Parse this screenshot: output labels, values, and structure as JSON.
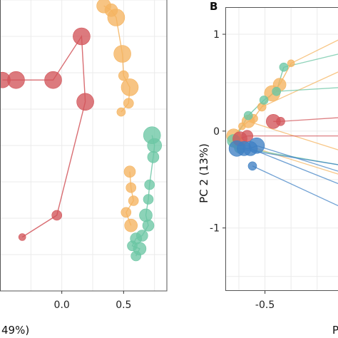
{
  "colors": {
    "red": "#d2555a",
    "orange": "#f5b460",
    "teal": "#6cc6a4",
    "blue": "#3f80c4",
    "grid": "#ebebeb",
    "frame": "#555555"
  },
  "chart_data": [
    {
      "type": "scatter",
      "panel_label": "",
      "xlabel": "",
      "ylabel": "",
      "xlabel_fragment": "49%)",
      "xlim": [
        -0.5,
        0.85
      ],
      "ylim": [
        -1.0,
        1.0
      ],
      "x_ticks": [
        0.0,
        0.5
      ],
      "x_tick_labels": [
        "0.0",
        "0.5"
      ],
      "y_ticks": [],
      "grid": true,
      "series": [
        {
          "color_key": "red",
          "points": [
            {
              "x": -0.48,
              "y": 0.45,
              "r": 11
            },
            {
              "x": -0.37,
              "y": 0.45,
              "r": 12
            },
            {
              "x": -0.07,
              "y": 0.45,
              "r": 12
            },
            {
              "x": 0.16,
              "y": 0.75,
              "r": 12
            },
            {
              "x": 0.19,
              "y": 0.3,
              "r": 12
            },
            {
              "x": -0.04,
              "y": -0.48,
              "r": 7
            },
            {
              "x": -0.32,
              "y": -0.63,
              "r": 5
            }
          ],
          "paths": [
            [
              0,
              1,
              2,
              3,
              4,
              5,
              6
            ]
          ]
        },
        {
          "color_key": "orange",
          "points": [
            {
              "x": 0.34,
              "y": 0.96,
              "r": 10
            },
            {
              "x": 0.4,
              "y": 0.93,
              "r": 9
            },
            {
              "x": 0.44,
              "y": 0.88,
              "r": 12
            },
            {
              "x": 0.49,
              "y": 0.63,
              "r": 12
            },
            {
              "x": 0.5,
              "y": 0.48,
              "r": 7
            },
            {
              "x": 0.55,
              "y": 0.4,
              "r": 12
            },
            {
              "x": 0.54,
              "y": 0.29,
              "r": 7
            },
            {
              "x": 0.48,
              "y": 0.23,
              "r": 6
            },
            {
              "x": 0.55,
              "y": -0.18,
              "r": 8
            },
            {
              "x": 0.56,
              "y": -0.29,
              "r": 7
            },
            {
              "x": 0.58,
              "y": -0.38,
              "r": 7
            },
            {
              "x": 0.52,
              "y": -0.46,
              "r": 7
            },
            {
              "x": 0.56,
              "y": -0.55,
              "r": 9
            }
          ],
          "paths": [
            [
              0,
              1,
              2,
              3,
              4,
              5,
              6,
              7
            ],
            [
              8,
              9,
              10,
              11,
              12
            ]
          ]
        },
        {
          "color_key": "teal",
          "points": [
            {
              "x": 0.73,
              "y": 0.07,
              "r": 12
            },
            {
              "x": 0.75,
              "y": 0.0,
              "r": 10
            },
            {
              "x": 0.74,
              "y": -0.08,
              "r": 8
            },
            {
              "x": 0.71,
              "y": -0.27,
              "r": 7
            },
            {
              "x": 0.7,
              "y": -0.37,
              "r": 7
            },
            {
              "x": 0.68,
              "y": -0.48,
              "r": 9
            },
            {
              "x": 0.7,
              "y": -0.55,
              "r": 8
            },
            {
              "x": 0.65,
              "y": -0.62,
              "r": 8
            },
            {
              "x": 0.6,
              "y": -0.64,
              "r": 8
            },
            {
              "x": 0.57,
              "y": -0.69,
              "r": 7
            },
            {
              "x": 0.63,
              "y": -0.71,
              "r": 9
            },
            {
              "x": 0.6,
              "y": -0.76,
              "r": 7
            }
          ],
          "paths": [
            [
              0,
              1,
              2,
              3,
              4,
              5,
              6,
              7,
              8,
              9,
              10,
              11
            ]
          ]
        }
      ]
    },
    {
      "type": "scatter",
      "panel_label": "B",
      "xlabel": "",
      "xlabel_fragment": "P",
      "ylabel": "PC 2 (13%)",
      "xlim": [
        -0.88,
        0.2
      ],
      "ylim": [
        -1.65,
        1.28
      ],
      "x_ticks": [
        -0.5
      ],
      "x_tick_labels": [
        "-0.5"
      ],
      "y_ticks": [
        1,
        0,
        -1
      ],
      "y_tick_labels": [
        "1",
        "0",
        "-1"
      ],
      "grid": true,
      "series": [
        {
          "color_key": "orange",
          "points": [
            {
              "x": -0.25,
              "y": 0.7,
              "r": 5
            },
            {
              "x": -0.36,
              "y": 0.48,
              "r": 9
            },
            {
              "x": -0.43,
              "y": 0.39,
              "r": 11
            },
            {
              "x": -0.53,
              "y": 0.25,
              "r": 6
            },
            {
              "x": -0.61,
              "y": 0.13,
              "r": 6
            },
            {
              "x": -0.66,
              "y": 0.1,
              "r": 9
            },
            {
              "x": -0.72,
              "y": 0.05,
              "r": 5
            },
            {
              "x": -0.8,
              "y": -0.05,
              "r": 10
            },
            {
              "x": -0.76,
              "y": -0.12,
              "r": 9
            }
          ],
          "paths": [
            [
              0,
              1,
              2,
              3,
              4,
              5,
              6,
              7
            ]
          ],
          "rays": [
            [
              0,
              0.22,
              0.95
            ],
            [
              3,
              0.22,
              0.62
            ],
            [
              5,
              0.22,
              -0.2
            ],
            [
              8,
              0.22,
              -0.45
            ]
          ]
        },
        {
          "color_key": "teal",
          "points": [
            {
              "x": -0.32,
              "y": 0.66,
              "r": 6
            },
            {
              "x": -0.39,
              "y": 0.41,
              "r": 6
            },
            {
              "x": -0.51,
              "y": 0.32,
              "r": 6
            },
            {
              "x": -0.66,
              "y": 0.16,
              "r": 6
            },
            {
              "x": -0.8,
              "y": -0.1,
              "r": 9
            },
            {
              "x": -0.74,
              "y": -0.17,
              "r": 8
            }
          ],
          "paths": [
            [
              0,
              1,
              2,
              3,
              4
            ]
          ],
          "rays": [
            [
              0,
              0.22,
              0.8
            ],
            [
              1,
              0.22,
              0.45
            ],
            [
              5,
              0.22,
              -0.35
            ]
          ]
        },
        {
          "color_key": "red",
          "points": [
            {
              "x": -0.42,
              "y": 0.1,
              "r": 10
            },
            {
              "x": -0.35,
              "y": 0.1,
              "r": 6
            },
            {
              "x": -0.67,
              "y": -0.05,
              "r": 8
            },
            {
              "x": -0.74,
              "y": -0.08,
              "r": 10
            }
          ],
          "paths": [
            [
              0,
              1
            ],
            [
              2,
              3
            ]
          ],
          "rays": [
            [
              1,
              0.22,
              0.14
            ],
            [
              2,
              0.22,
              -0.05
            ]
          ]
        },
        {
          "color_key": "blue",
          "points": [
            {
              "x": -0.58,
              "y": -0.15,
              "r": 11
            },
            {
              "x": -0.64,
              "y": -0.18,
              "r": 10
            },
            {
              "x": -0.7,
              "y": -0.18,
              "r": 10
            },
            {
              "x": -0.77,
              "y": -0.18,
              "r": 11
            },
            {
              "x": -0.62,
              "y": -0.36,
              "r": 6
            }
          ],
          "paths": [
            [
              0,
              1,
              2,
              3
            ]
          ],
          "rays": [
            [
              0,
              0.22,
              -0.42
            ],
            [
              1,
              0.22,
              -0.55
            ],
            [
              4,
              0.22,
              -0.78
            ],
            [
              3,
              0.22,
              -0.35
            ]
          ]
        }
      ]
    }
  ]
}
